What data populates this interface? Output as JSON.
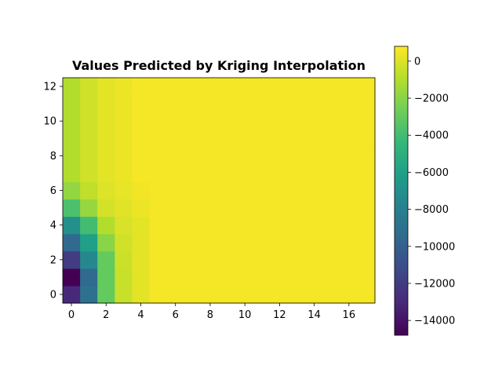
{
  "chart_data": {
    "type": "heatmap",
    "title": "Values Predicted by Kriging Interpolation",
    "xlabel": "",
    "ylabel": "",
    "colormap": "viridis",
    "colorbar": {
      "range": [
        -14800,
        800
      ],
      "ticks": [
        0,
        -2000,
        -4000,
        -6000,
        -8000,
        -10000,
        -12000,
        -14000
      ],
      "tick_labels": [
        "0",
        "−2000",
        "−4000",
        "−6000",
        "−8000",
        "−10000",
        "−12000",
        "−14000"
      ]
    },
    "x": {
      "range": [
        -0.5,
        17.5
      ],
      "ticks": [
        0,
        2,
        4,
        6,
        8,
        10,
        12,
        14,
        16
      ],
      "tick_labels": [
        "0",
        "2",
        "4",
        "6",
        "8",
        "10",
        "12",
        "14",
        "16"
      ]
    },
    "y": {
      "range": [
        -0.5,
        12.5
      ],
      "ticks": [
        0,
        2,
        4,
        6,
        8,
        10,
        12
      ],
      "tick_labels": [
        "0",
        "2",
        "4",
        "6",
        "8",
        "10",
        "12"
      ]
    },
    "grid_default": 600,
    "columns_0_to_3_by_row": [
      [
        -13000,
        -9000,
        -3000,
        -500
      ],
      [
        -14800,
        -9500,
        -3000,
        -500
      ],
      [
        -12000,
        -7500,
        -3000,
        -400
      ],
      [
        -9500,
        -6000,
        -2000,
        -300
      ],
      [
        -7000,
        -4000,
        -1000,
        -100
      ],
      [
        -3700,
        -1700,
        -200,
        100
      ],
      [
        -1800,
        -700,
        0,
        300
      ],
      [
        -1000,
        -300,
        200,
        400
      ],
      [
        -1000,
        -300,
        200,
        400
      ],
      [
        -1000,
        -300,
        200,
        400
      ],
      [
        -1000,
        -300,
        200,
        400
      ],
      [
        -1000,
        -300,
        200,
        400
      ],
      [
        -1000,
        -300,
        200,
        400
      ]
    ],
    "column_4_by_row": [
      200,
      200,
      200,
      200,
      200,
      400,
      500,
      600,
      600,
      600,
      600,
      600,
      600
    ]
  }
}
